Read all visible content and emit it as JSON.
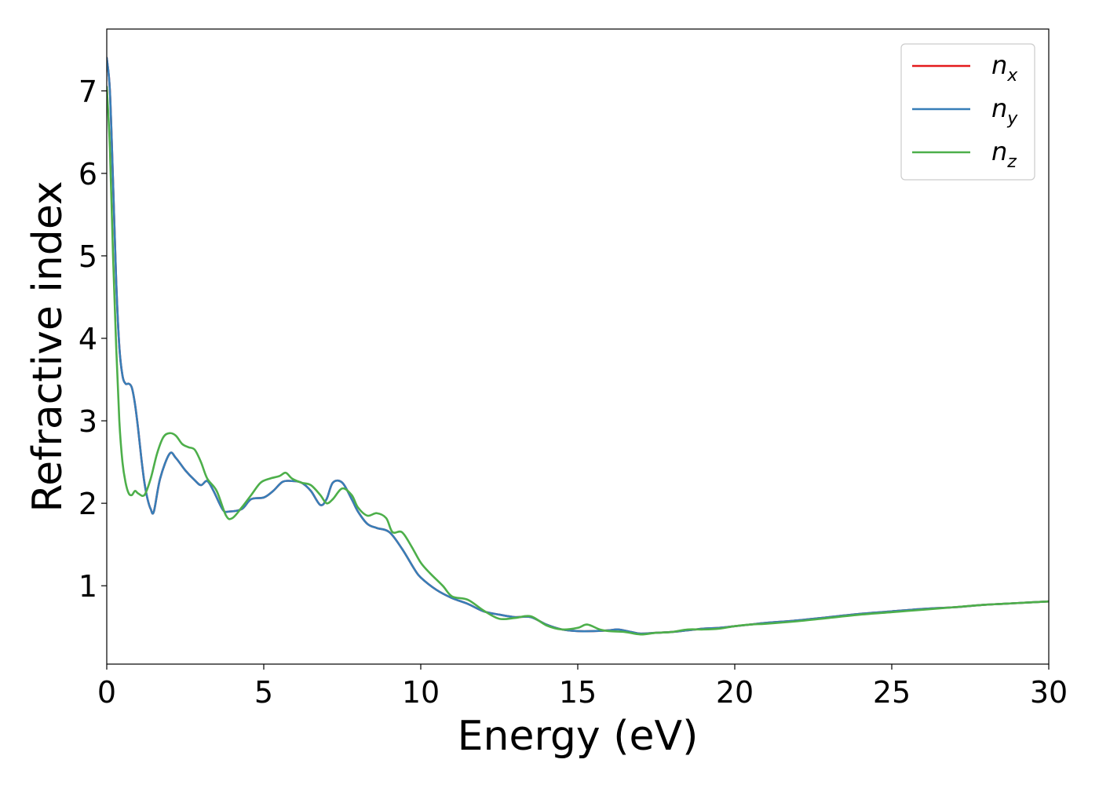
{
  "chart_data": {
    "type": "line",
    "title": "",
    "xlabel": "Energy (eV)",
    "ylabel": "Refractive index",
    "xlim": [
      0,
      30
    ],
    "ylim": [
      0.05,
      7.75
    ],
    "x_ticks": [
      0,
      5,
      10,
      15,
      20,
      25,
      30
    ],
    "y_ticks": [
      1,
      2,
      3,
      4,
      5,
      6,
      7
    ],
    "grid": false,
    "legend_position": "top-right",
    "series": [
      {
        "name": "n_x",
        "legend_base": "n",
        "legend_sub": "x",
        "color": "#e41a1c",
        "x": [
          0,
          0.1,
          0.2,
          0.3,
          0.4,
          0.5,
          0.6,
          0.7,
          0.8,
          0.9,
          1.0,
          1.1,
          1.2,
          1.3,
          1.4,
          1.5,
          1.7,
          2.0,
          2.2,
          2.5,
          2.8,
          3.0,
          3.2,
          3.4,
          3.7,
          3.9,
          4.3,
          4.6,
          5.0,
          5.3,
          5.6,
          5.9,
          6.2,
          6.5,
          6.8,
          7.0,
          7.2,
          7.5,
          7.8,
          8.0,
          8.3,
          8.6,
          9.0,
          9.4,
          9.8,
          10.0,
          10.5,
          11.0,
          11.5,
          12.0,
          12.5,
          13.0,
          13.5,
          14.0,
          14.5,
          15.0,
          15.5,
          16.0,
          16.3,
          16.7,
          17.0,
          17.5,
          18.0,
          18.5,
          19.0,
          19.5,
          20.0,
          20.5,
          21.0,
          22.0,
          23.0,
          24.0,
          25.0,
          26.0,
          27.0,
          28.0,
          29.0,
          30.0
        ],
        "values": [
          7.4,
          7.0,
          5.9,
          4.7,
          3.9,
          3.55,
          3.45,
          3.45,
          3.4,
          3.2,
          2.9,
          2.55,
          2.25,
          2.05,
          1.93,
          1.9,
          2.3,
          2.6,
          2.55,
          2.4,
          2.28,
          2.22,
          2.27,
          2.15,
          1.92,
          1.9,
          1.93,
          2.05,
          2.07,
          2.15,
          2.26,
          2.27,
          2.25,
          2.15,
          1.98,
          2.05,
          2.25,
          2.25,
          2.05,
          1.9,
          1.75,
          1.7,
          1.65,
          1.45,
          1.2,
          1.1,
          0.95,
          0.85,
          0.78,
          0.69,
          0.65,
          0.62,
          0.62,
          0.53,
          0.47,
          0.45,
          0.45,
          0.46,
          0.47,
          0.44,
          0.42,
          0.43,
          0.44,
          0.46,
          0.48,
          0.49,
          0.51,
          0.53,
          0.55,
          0.58,
          0.62,
          0.66,
          0.69,
          0.72,
          0.74,
          0.77,
          0.79,
          0.81
        ]
      },
      {
        "name": "n_y",
        "legend_base": "n",
        "legend_sub": "y",
        "color": "#377eb8",
        "x": [
          0,
          0.1,
          0.2,
          0.3,
          0.4,
          0.5,
          0.6,
          0.7,
          0.8,
          0.9,
          1.0,
          1.1,
          1.2,
          1.3,
          1.4,
          1.5,
          1.7,
          2.0,
          2.2,
          2.5,
          2.8,
          3.0,
          3.2,
          3.4,
          3.7,
          3.9,
          4.3,
          4.6,
          5.0,
          5.3,
          5.6,
          5.9,
          6.2,
          6.5,
          6.8,
          7.0,
          7.2,
          7.5,
          7.8,
          8.0,
          8.3,
          8.6,
          9.0,
          9.4,
          9.8,
          10.0,
          10.5,
          11.0,
          11.5,
          12.0,
          12.5,
          13.0,
          13.5,
          14.0,
          14.5,
          15.0,
          15.5,
          16.0,
          16.3,
          16.7,
          17.0,
          17.5,
          18.0,
          18.5,
          19.0,
          19.5,
          20.0,
          20.5,
          21.0,
          22.0,
          23.0,
          24.0,
          25.0,
          26.0,
          27.0,
          28.0,
          29.0,
          30.0
        ],
        "values": [
          7.4,
          7.0,
          5.9,
          4.7,
          3.9,
          3.55,
          3.45,
          3.45,
          3.4,
          3.2,
          2.9,
          2.55,
          2.25,
          2.05,
          1.93,
          1.9,
          2.3,
          2.6,
          2.55,
          2.4,
          2.28,
          2.22,
          2.27,
          2.15,
          1.92,
          1.9,
          1.93,
          2.05,
          2.07,
          2.15,
          2.26,
          2.27,
          2.25,
          2.15,
          1.98,
          2.05,
          2.25,
          2.25,
          2.05,
          1.9,
          1.75,
          1.7,
          1.65,
          1.45,
          1.2,
          1.1,
          0.95,
          0.85,
          0.78,
          0.69,
          0.65,
          0.62,
          0.62,
          0.53,
          0.47,
          0.45,
          0.45,
          0.46,
          0.47,
          0.44,
          0.42,
          0.43,
          0.44,
          0.46,
          0.48,
          0.49,
          0.51,
          0.53,
          0.55,
          0.58,
          0.62,
          0.66,
          0.69,
          0.72,
          0.74,
          0.77,
          0.79,
          0.81
        ]
      },
      {
        "name": "n_z",
        "legend_base": "n",
        "legend_sub": "z",
        "color": "#4daf4a",
        "x": [
          0,
          0.1,
          0.2,
          0.3,
          0.4,
          0.5,
          0.6,
          0.7,
          0.8,
          0.9,
          1.0,
          1.2,
          1.4,
          1.6,
          1.8,
          2.0,
          2.2,
          2.4,
          2.6,
          2.8,
          3.0,
          3.2,
          3.5,
          3.8,
          4.0,
          4.3,
          4.6,
          4.9,
          5.2,
          5.5,
          5.7,
          5.9,
          6.2,
          6.5,
          6.8,
          7.0,
          7.2,
          7.5,
          7.8,
          8.0,
          8.3,
          8.6,
          8.9,
          9.1,
          9.4,
          9.7,
          10.0,
          10.3,
          10.7,
          11.0,
          11.5,
          12.0,
          12.5,
          13.0,
          13.5,
          14.0,
          14.5,
          15.0,
          15.3,
          15.7,
          16.0,
          16.5,
          17.0,
          17.5,
          18.0,
          18.5,
          19.0,
          19.5,
          20.0,
          20.5,
          21.0,
          22.0,
          23.0,
          24.0,
          25.0,
          26.0,
          27.0,
          28.0,
          29.0,
          30.0
        ],
        "values": [
          7.05,
          6.3,
          5.0,
          3.9,
          3.0,
          2.5,
          2.25,
          2.12,
          2.1,
          2.15,
          2.12,
          2.1,
          2.3,
          2.6,
          2.8,
          2.85,
          2.82,
          2.72,
          2.68,
          2.65,
          2.5,
          2.3,
          2.15,
          1.85,
          1.82,
          1.95,
          2.1,
          2.25,
          2.3,
          2.33,
          2.37,
          2.3,
          2.25,
          2.22,
          2.1,
          2.0,
          2.05,
          2.18,
          2.1,
          1.95,
          1.85,
          1.88,
          1.82,
          1.65,
          1.65,
          1.48,
          1.28,
          1.15,
          1.0,
          0.87,
          0.83,
          0.7,
          0.6,
          0.61,
          0.63,
          0.52,
          0.47,
          0.49,
          0.53,
          0.47,
          0.45,
          0.44,
          0.41,
          0.43,
          0.44,
          0.47,
          0.47,
          0.48,
          0.51,
          0.53,
          0.54,
          0.57,
          0.61,
          0.65,
          0.68,
          0.71,
          0.74,
          0.77,
          0.79,
          0.81
        ]
      }
    ]
  }
}
